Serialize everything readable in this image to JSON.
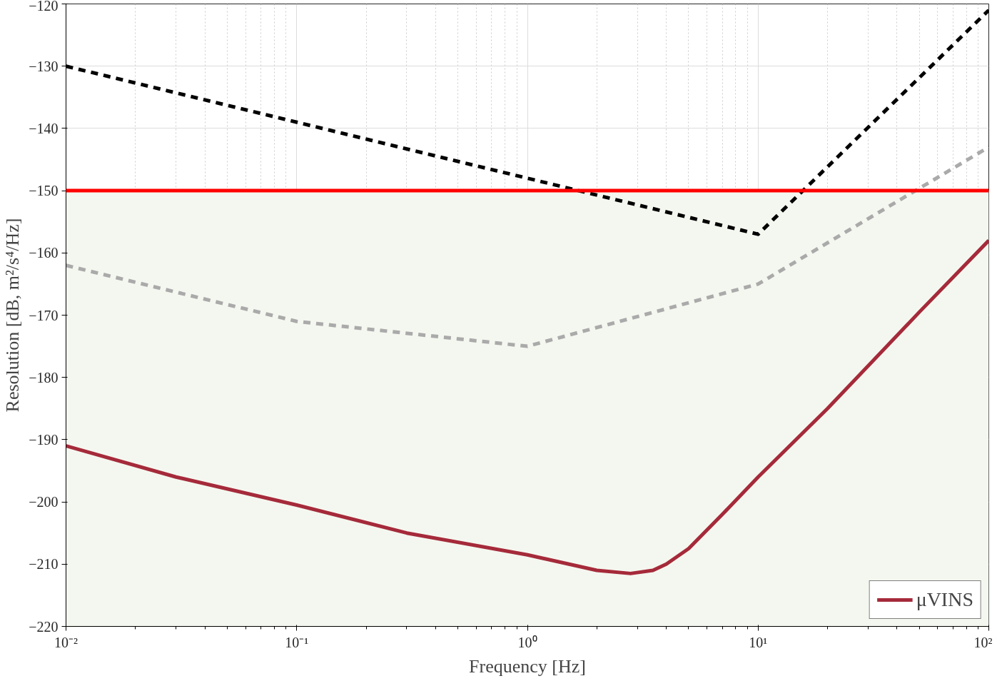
{
  "chart_data": {
    "type": "line",
    "xlabel": "Frequency [Hz]",
    "ylabel": "Resolution [dB, m²/s⁴/Hz]",
    "log": "x",
    "xlim": [
      0.01,
      100
    ],
    "xticks": [
      {
        "value": 0.01,
        "label": "10⁻²"
      },
      {
        "value": 0.1,
        "label": "10⁻¹"
      },
      {
        "value": 1,
        "label": "10⁰"
      },
      {
        "value": 10,
        "label": "10¹"
      },
      {
        "value": 100,
        "label": "10²"
      }
    ],
    "ylim": [
      -220,
      -120
    ],
    "yticks": [
      -220,
      -210,
      -200,
      -190,
      -180,
      -170,
      -160,
      -150,
      -140,
      -130,
      -120
    ],
    "grid": true,
    "legend": "bottom right",
    "bands": [
      {
        "axis": "y",
        "from": -220,
        "to": -150,
        "color": "#f4f7ef"
      }
    ],
    "ref_lines": [
      {
        "axis": "y",
        "value": -150,
        "color": "#ff0000"
      }
    ],
    "series": [
      {
        "name": "μVINS",
        "color": "#a52a3a",
        "line_style": "solid",
        "x": [
          0.01,
          0.03,
          0.1,
          0.3,
          1,
          2,
          2.8,
          3.5,
          4,
          5,
          7,
          10,
          20,
          50,
          100
        ],
        "values": [
          -191,
          -196,
          -200.5,
          -205,
          -208.5,
          -211,
          -211.5,
          -211,
          -210,
          -207.5,
          -202,
          -196,
          -185,
          -169.5,
          -158
        ]
      },
      {
        "color": "#000000",
        "line_style": "dashed",
        "x": [
          0.01,
          10,
          100
        ],
        "values": [
          -130,
          -157,
          -121
        ]
      },
      {
        "color": "#aaaaaa",
        "line_style": "dashed",
        "x": [
          0.01,
          0.1,
          1,
          10,
          100
        ],
        "values": [
          -162,
          -171,
          -175,
          -165,
          -143
        ]
      }
    ]
  }
}
